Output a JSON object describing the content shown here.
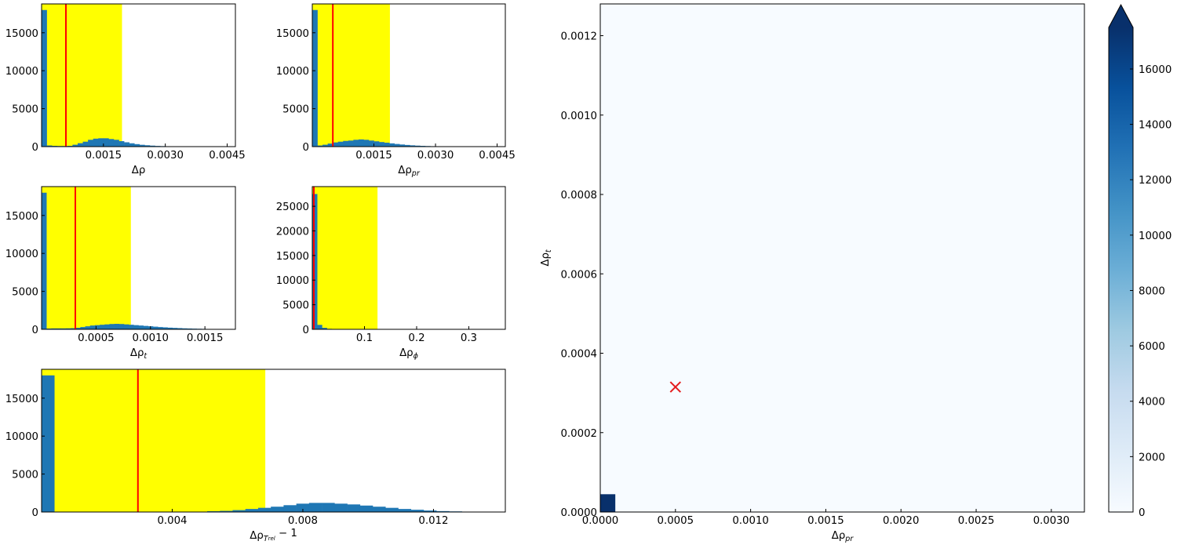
{
  "chart_data": [
    {
      "id": "h_rho",
      "type": "histogram",
      "xlabel": {
        "base": "Δρ",
        "sub": ""
      },
      "xlim": [
        0.0,
        0.0047
      ],
      "ylim": [
        0,
        18800
      ],
      "xticks": [
        {
          "v": 0.0015,
          "label": "0.0015"
        },
        {
          "v": 0.003,
          "label": "0.0030"
        },
        {
          "v": 0.0045,
          "label": "0.0045"
        }
      ],
      "yticks": [
        {
          "v": 0,
          "label": "0"
        },
        {
          "v": 5000,
          "label": "5000"
        },
        {
          "v": 10000,
          "label": "10000"
        },
        {
          "v": 15000,
          "label": "15000"
        }
      ],
      "band": [
        0.0,
        0.00195
      ],
      "marker": 0.00059,
      "bin_width": 0.000125,
      "bins": [
        [
          0.0,
          18000
        ],
        [
          0.000125,
          150
        ],
        [
          0.00025,
          100
        ],
        [
          0.000375,
          80
        ],
        [
          0.0005,
          80
        ],
        [
          0.000625,
          100
        ],
        [
          0.00075,
          250
        ],
        [
          0.000875,
          450
        ],
        [
          0.001,
          650
        ],
        [
          0.001125,
          900
        ],
        [
          0.00125,
          1050
        ],
        [
          0.001375,
          1100
        ],
        [
          0.0015,
          1100
        ],
        [
          0.001625,
          1000
        ],
        [
          0.00175,
          900
        ],
        [
          0.001875,
          720
        ],
        [
          0.002,
          570
        ],
        [
          0.002125,
          440
        ],
        [
          0.00225,
          330
        ],
        [
          0.002375,
          240
        ],
        [
          0.0025,
          180
        ],
        [
          0.002625,
          130
        ],
        [
          0.00275,
          90
        ],
        [
          0.002875,
          65
        ],
        [
          0.003,
          45
        ],
        [
          0.003125,
          30
        ],
        [
          0.00325,
          20
        ],
        [
          0.003375,
          15
        ],
        [
          0.0035,
          10
        ],
        [
          0.003625,
          8
        ],
        [
          0.00375,
          5
        ],
        [
          0.003875,
          3
        ]
      ]
    },
    {
      "id": "h_rho_pr",
      "type": "histogram",
      "xlabel": {
        "base": "Δρ",
        "sub": "pr"
      },
      "xlim": [
        0.0,
        0.0047
      ],
      "ylim": [
        0,
        18800
      ],
      "xticks": [
        {
          "v": 0.0015,
          "label": "0.0015"
        },
        {
          "v": 0.003,
          "label": "0.0030"
        },
        {
          "v": 0.0045,
          "label": "0.0045"
        }
      ],
      "yticks": [
        {
          "v": 0,
          "label": "0"
        },
        {
          "v": 5000,
          "label": "5000"
        },
        {
          "v": 10000,
          "label": "10000"
        },
        {
          "v": 15000,
          "label": "15000"
        }
      ],
      "band": [
        0.0,
        0.00189
      ],
      "marker": 0.0005,
      "bin_width": 0.000125,
      "bins": [
        [
          0.0,
          18000
        ],
        [
          0.000125,
          150
        ],
        [
          0.00025,
          250
        ],
        [
          0.000375,
          400
        ],
        [
          0.0005,
          550
        ],
        [
          0.000625,
          650
        ],
        [
          0.00075,
          750
        ],
        [
          0.000875,
          800
        ],
        [
          0.001,
          900
        ],
        [
          0.001125,
          950
        ],
        [
          0.00125,
          900
        ],
        [
          0.001375,
          800
        ],
        [
          0.0015,
          700
        ],
        [
          0.001625,
          600
        ],
        [
          0.00175,
          520
        ],
        [
          0.001875,
          430
        ],
        [
          0.002,
          350
        ],
        [
          0.002125,
          280
        ],
        [
          0.00225,
          220
        ],
        [
          0.002375,
          170
        ],
        [
          0.0025,
          130
        ],
        [
          0.002625,
          100
        ],
        [
          0.00275,
          75
        ],
        [
          0.002875,
          55
        ],
        [
          0.003,
          40
        ],
        [
          0.003125,
          28
        ],
        [
          0.00325,
          20
        ],
        [
          0.003375,
          14
        ],
        [
          0.0035,
          10
        ],
        [
          0.003625,
          7
        ],
        [
          0.00375,
          5
        ],
        [
          0.003875,
          3
        ]
      ]
    },
    {
      "id": "h_rho_t",
      "type": "histogram",
      "xlabel": {
        "base": "Δρ",
        "sub": "t"
      },
      "xlim": [
        0.0,
        0.00178
      ],
      "ylim": [
        0,
        18800
      ],
      "xticks": [
        {
          "v": 0.0005,
          "label": "0.0005"
        },
        {
          "v": 0.001,
          "label": "0.0010"
        },
        {
          "v": 0.0015,
          "label": "0.0015"
        }
      ],
      "yticks": [
        {
          "v": 0,
          "label": "0"
        },
        {
          "v": 5000,
          "label": "5000"
        },
        {
          "v": 10000,
          "label": "10000"
        },
        {
          "v": 15000,
          "label": "15000"
        }
      ],
      "band": [
        0.0,
        0.00082
      ],
      "marker": 0.00031,
      "bin_width": 4.45e-05,
      "bins": [
        [
          0.0,
          18000
        ],
        [
          4.45e-05,
          100
        ],
        [
          8.9e-05,
          120
        ],
        [
          0.0001335,
          120
        ],
        [
          0.000178,
          120
        ],
        [
          0.0002225,
          130
        ],
        [
          0.000267,
          150
        ],
        [
          0.0003115,
          200
        ],
        [
          0.000356,
          300
        ],
        [
          0.0004005,
          400
        ],
        [
          0.000445,
          500
        ],
        [
          0.0004895,
          550
        ],
        [
          0.000534,
          600
        ],
        [
          0.0005785,
          650
        ],
        [
          0.000623,
          700
        ],
        [
          0.0006675,
          720
        ],
        [
          0.000712,
          700
        ],
        [
          0.0007565,
          650
        ],
        [
          0.000801,
          600
        ],
        [
          0.0008455,
          550
        ],
        [
          0.00089,
          500
        ],
        [
          0.0009345,
          450
        ],
        [
          0.000979,
          400
        ],
        [
          0.0010235,
          350
        ],
        [
          0.001068,
          300
        ],
        [
          0.0011125,
          260
        ],
        [
          0.001157,
          220
        ],
        [
          0.0012015,
          190
        ],
        [
          0.001246,
          160
        ],
        [
          0.0012905,
          130
        ],
        [
          0.001335,
          110
        ],
        [
          0.0013795,
          90
        ],
        [
          0.001424,
          75
        ],
        [
          0.0014685,
          60
        ],
        [
          0.001513,
          50
        ],
        [
          0.0015575,
          40
        ],
        [
          0.001602,
          30
        ],
        [
          0.0016465,
          25
        ],
        [
          0.001691,
          20
        ],
        [
          0.0017355,
          15
        ]
      ]
    },
    {
      "id": "h_rho_phi",
      "type": "histogram",
      "xlabel": {
        "base": "Δρ",
        "sub": "ϕ"
      },
      "xlim": [
        0.0,
        0.37
      ],
      "ylim": [
        0,
        29000
      ],
      "xticks": [
        {
          "v": 0.1,
          "label": "0.1"
        },
        {
          "v": 0.2,
          "label": "0.2"
        },
        {
          "v": 0.3,
          "label": "0.3"
        }
      ],
      "yticks": [
        {
          "v": 0,
          "label": "0"
        },
        {
          "v": 5000,
          "label": "5000"
        },
        {
          "v": 10000,
          "label": "10000"
        },
        {
          "v": 15000,
          "label": "15000"
        },
        {
          "v": 20000,
          "label": "20000"
        },
        {
          "v": 25000,
          "label": "25000"
        }
      ],
      "band": [
        0.0,
        0.125
      ],
      "marker": 0.003,
      "bin_width": 0.0093,
      "bins": [
        [
          0.0,
          27500
        ],
        [
          0.0093,
          900
        ],
        [
          0.0186,
          300
        ],
        [
          0.0279,
          100
        ],
        [
          0.0372,
          50
        ],
        [
          0.0465,
          30
        ],
        [
          0.0558,
          20
        ],
        [
          0.0651,
          10
        ]
      ]
    },
    {
      "id": "h_rho_trel",
      "type": "histogram",
      "xlabel": {
        "base": "Δρ",
        "sub": "T",
        "subsub": "rel",
        "suffix": " − 1"
      },
      "xlim": [
        0.0,
        0.0142
      ],
      "ylim": [
        0,
        18800
      ],
      "xticks": [
        {
          "v": 0.004,
          "label": "0.004"
        },
        {
          "v": 0.008,
          "label": "0.008"
        },
        {
          "v": 0.012,
          "label": "0.012"
        }
      ],
      "yticks": [
        {
          "v": 0,
          "label": "0"
        },
        {
          "v": 5000,
          "label": "5000"
        },
        {
          "v": 10000,
          "label": "10000"
        },
        {
          "v": 15000,
          "label": "15000"
        }
      ],
      "band": [
        0.0,
        0.00685
      ],
      "marker": 0.00295,
      "bin_width": 0.00039,
      "bins": [
        [
          0.0,
          18000
        ],
        [
          0.00039,
          20
        ],
        [
          0.00078,
          20
        ],
        [
          0.00117,
          20
        ],
        [
          0.00156,
          20
        ],
        [
          0.00195,
          20
        ],
        [
          0.00234,
          20
        ],
        [
          0.00273,
          20
        ],
        [
          0.00312,
          20
        ],
        [
          0.00351,
          20
        ],
        [
          0.0039,
          20
        ],
        [
          0.00429,
          30
        ],
        [
          0.00468,
          50
        ],
        [
          0.00507,
          100
        ],
        [
          0.00546,
          150
        ],
        [
          0.00585,
          250
        ],
        [
          0.00624,
          400
        ],
        [
          0.00663,
          550
        ],
        [
          0.00702,
          700
        ],
        [
          0.00741,
          900
        ],
        [
          0.0078,
          1100
        ],
        [
          0.00819,
          1200
        ],
        [
          0.00858,
          1200
        ],
        [
          0.00897,
          1100
        ],
        [
          0.00936,
          1000
        ],
        [
          0.00975,
          850
        ],
        [
          0.01014,
          700
        ],
        [
          0.01053,
          550
        ],
        [
          0.01092,
          400
        ],
        [
          0.01131,
          300
        ],
        [
          0.0117,
          200
        ],
        [
          0.01209,
          120
        ],
        [
          0.01248,
          80
        ],
        [
          0.01287,
          50
        ],
        [
          0.01326,
          30
        ],
        [
          0.01365,
          20
        ]
      ]
    },
    {
      "id": "hist2d",
      "type": "heatmap",
      "xlabel": {
        "base": "Δρ",
        "sub": "pr"
      },
      "ylabel": {
        "base": "Δρ",
        "sub": "t"
      },
      "xlim": [
        0.0,
        0.00322
      ],
      "ylim": [
        0.0,
        0.00128
      ],
      "xticks": [
        {
          "v": 0.0,
          "label": "0.0000"
        },
        {
          "v": 0.0005,
          "label": "0.0005"
        },
        {
          "v": 0.001,
          "label": "0.0010"
        },
        {
          "v": 0.0015,
          "label": "0.0015"
        },
        {
          "v": 0.002,
          "label": "0.0020"
        },
        {
          "v": 0.0025,
          "label": "0.0025"
        },
        {
          "v": 0.003,
          "label": "0.0030"
        }
      ],
      "yticks": [
        {
          "v": 0.0,
          "label": "0.0000"
        },
        {
          "v": 0.0002,
          "label": "0.0002"
        },
        {
          "v": 0.0004,
          "label": "0.0004"
        },
        {
          "v": 0.0006,
          "label": "0.0006"
        },
        {
          "v": 0.0008,
          "label": "0.0008"
        },
        {
          "v": 0.001,
          "label": "0.0010"
        },
        {
          "v": 0.0012,
          "label": "0.0012"
        }
      ],
      "background_color": "#f7fbff",
      "cells": [
        {
          "x": [
            0.0,
            0.0001
          ],
          "y": [
            0.0,
            4.48e-05
          ],
          "value": 18000,
          "color": "#08306b"
        }
      ],
      "marker": {
        "x": 0.0005,
        "y": 0.000315,
        "symbol": "×",
        "color": "#e41a1c"
      },
      "colorbar": {
        "range": [
          0,
          17500
        ],
        "extend": "max",
        "ticks": [
          {
            "v": 0,
            "label": "0"
          },
          {
            "v": 2000,
            "label": "2000"
          },
          {
            "v": 4000,
            "label": "4000"
          },
          {
            "v": 6000,
            "label": "6000"
          },
          {
            "v": 8000,
            "label": "8000"
          },
          {
            "v": 10000,
            "label": "10000"
          },
          {
            "v": 12000,
            "label": "12000"
          },
          {
            "v": 14000,
            "label": "14000"
          },
          {
            "v": 16000,
            "label": "16000"
          }
        ],
        "colormap": [
          "#f7fbff",
          "#deebf7",
          "#c6dbef",
          "#9ecae1",
          "#6baed6",
          "#4292c6",
          "#2171b5",
          "#08519c",
          "#08306b"
        ]
      }
    }
  ],
  "style": {
    "hist_color": "#1f77b4",
    "band_color": "#ffff00",
    "marker_color": "#ff0000"
  }
}
